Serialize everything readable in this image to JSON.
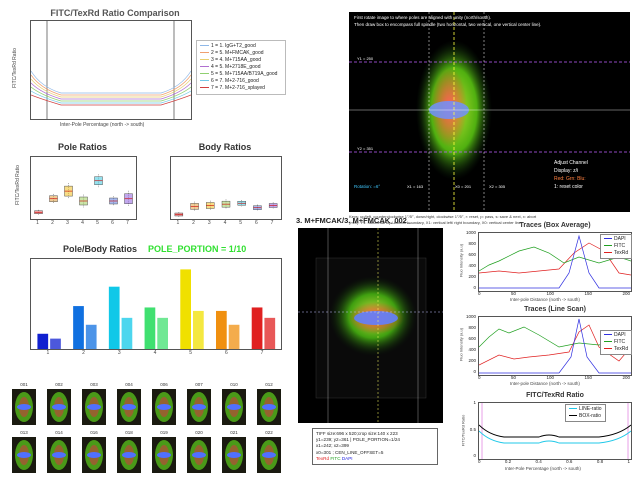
{
  "ratio_comparison": {
    "title": "FITC/TexRd Ratio Comparison",
    "ylabel": "FITC/TexRd Ratio",
    "xlabel": "Inter-Pole Percentage (north -> south)",
    "legend": [
      {
        "label": "1 = 1. IgG+T2_good",
        "color": "#8fb8e8"
      },
      {
        "label": "2 = 5. M+FMCAK_good",
        "color": "#f0a070"
      },
      {
        "label": "3 = 4. M+715AA_good",
        "color": "#e8d070"
      },
      {
        "label": "4 = 5. M+2718E_good",
        "color": "#b070d0"
      },
      {
        "label": "5 = 5. M+715AA/B719A_good",
        "color": "#90d070"
      },
      {
        "label": "6 = 7. M+2-716_good",
        "color": "#70c8e8"
      },
      {
        "label": "7 = 7. M+2-716_splayed",
        "color": "#d04040"
      }
    ]
  },
  "pole_ratios": {
    "title": "Pole Ratios",
    "ylabel": "FITC/TexRd Ratio",
    "ticks": [
      "1",
      "2",
      "3",
      "4",
      "5",
      "6",
      "7"
    ]
  },
  "body_ratios": {
    "title": "Body Ratios",
    "ticks": [
      "1",
      "2",
      "3",
      "4",
      "5",
      "6",
      "7"
    ]
  },
  "pole_body": {
    "title": "Pole/Body Ratios",
    "portion": "POLE_PORTION = 1/10",
    "ticks": [
      "1",
      "2",
      "3",
      "4",
      "5",
      "6",
      "7"
    ],
    "colors": [
      "#1020d0",
      "#1070e0",
      "#10c8e8",
      "#40e070",
      "#f0e000",
      "#f09010",
      "#e02020"
    ],
    "pole": [
      0.22,
      0.62,
      0.9,
      0.6,
      1.15,
      0.55,
      0.6
    ],
    "body": [
      0.15,
      0.35,
      0.45,
      0.45,
      0.55,
      0.35,
      0.45
    ]
  },
  "thumbs_row1": [
    "001",
    "002",
    "003",
    "004",
    "006",
    "007",
    "010",
    "012"
  ],
  "thumbs_row2": [
    "013",
    "014",
    "016",
    "018",
    "019",
    "020",
    "021",
    "022"
  ],
  "main_image": {
    "hint1": "First rotate image to where poles are aligned with unity (north/south).",
    "hint2": "Then draw box to encompass full spindle (two horizontal, two vertical, one vertical center line).",
    "ylab_top": "Y1 = 250",
    "ylab_bot": "Y2 = 351",
    "xlab1": "X1 = 163",
    "xlab2": "X0 = 201",
    "xlab3": "X2 = 305",
    "rotation": "Rotation: =6°",
    "adjust1": "Adjust Channel",
    "adjust2": "Display: z/i",
    "adjust3": "Red: Grn: Blu:",
    "adjust4": "1: reset color",
    "keys1": "Keys:  up/left, counterclockwise 1°/5°,  down/right, clockwise 1°/5°,  r: reset,  p: pass,  s: save & next,  x: abort",
    "keys2": "(mm):  Y1: horizontal top/ bottom boundary,   X1: vertical left/ right boundary,   X0: vertical center line"
  },
  "center_image": {
    "title": "3. M+FMCAK/3. M+FMCAK_002_",
    "info1": "TIFF size:696 x 520;crop size:140 x 223",
    "info2": "y1=239; y2=361 | POLE_PORTION=1/24",
    "info3": "x1=242; x2=399",
    "info4": "x0=301 ; CEN_LINE_OFFSET=5",
    "chan_tex": "TexRd",
    "chan_fitc": "FITC",
    "chan_dapi": "DAPI"
  },
  "traces_box": {
    "title": "Traces (Box Average)",
    "ylabel": "Fluo Intensity (a.u)",
    "xlabel": "Inter-pole Distance (north -> south)",
    "yticks": [
      "1000",
      "800",
      "600",
      "400",
      "200",
      "0"
    ],
    "xticks": [
      "0",
      "50",
      "100",
      "150",
      "200"
    ],
    "legend": [
      {
        "label": "DAPI",
        "color": "#3030e0"
      },
      {
        "label": "FITC",
        "color": "#20a020"
      },
      {
        "label": "TexRd",
        "color": "#e02020"
      }
    ]
  },
  "traces_line": {
    "title": "Traces (Line Scan)",
    "ylabel": "Fluo Intensity (a.u)",
    "xlabel": "Inter-pole Distance (north -> south)",
    "yticks": [
      "1000",
      "800",
      "600",
      "400",
      "200",
      "0"
    ],
    "xticks": [
      "0",
      "50",
      "100",
      "150",
      "200"
    ],
    "legend": [
      {
        "label": "DAPI",
        "color": "#3030e0"
      },
      {
        "label": "FITC",
        "color": "#20a020"
      },
      {
        "label": "TexRd",
        "color": "#e02020"
      }
    ]
  },
  "fitc_texrd": {
    "title": "FITC/TexRd Ratio",
    "ylabel": "FITC/TexRd Ratio",
    "xlabel": "Inter-Pole Percentage (north -> south)",
    "yticks": [
      "1",
      "0.5",
      "0"
    ],
    "xticks": [
      "0",
      "0.2",
      "0.4",
      "0.6",
      "0.8",
      "1"
    ],
    "legend": [
      {
        "label": "LINE-ratio",
        "color": "#20c8e8"
      },
      {
        "label": "BOX-ratio",
        "color": "#000000"
      }
    ]
  }
}
